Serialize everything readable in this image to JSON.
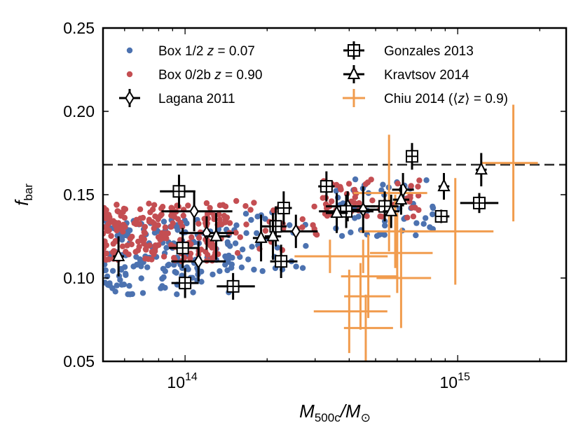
{
  "chart_data": {
    "type": "scatter",
    "xscale": "log",
    "xlim": [
      50000000000000,
      2500000000000000
    ],
    "ylim": [
      0.05,
      0.25
    ],
    "yticks": [
      0.05,
      0.1,
      0.15,
      0.2,
      0.25
    ],
    "ytick_labels": [
      "0.05",
      "0.10",
      "0.15",
      "0.20",
      "0.25"
    ],
    "xticks": [
      100000000000000,
      1000000000000000
    ],
    "xtick_labels": [
      {
        "base": "10",
        "exp": "14"
      },
      {
        "base": "10",
        "exp": "15"
      }
    ],
    "xlabel": {
      "main": "M",
      "sub1": "500c",
      "sep": "/M",
      "sub2": "⊙"
    },
    "ylabel": {
      "main": "f",
      "sub": "bar"
    },
    "reference_line": {
      "y": 0.168,
      "style": "dashed",
      "color": "#333333"
    },
    "legend": {
      "position": "top",
      "entries": [
        {
          "label": "Box 1/2 z = 0.07",
          "marker": "dot",
          "color": "#4c72b0"
        },
        {
          "label": "Box 0/2b z = 0.90",
          "marker": "dot",
          "color": "#c44e52"
        },
        {
          "label": "Lagana 2011",
          "marker": "diamond",
          "color": "#000000"
        },
        {
          "label": "Gonzales 2013",
          "marker": "square",
          "color": "#000000"
        },
        {
          "label": "Kravtsov 2014",
          "marker": "triangle",
          "color": "#000000"
        },
        {
          "label": "Chiu 2014 (⟨z⟩ = 0.9)",
          "marker": "cross",
          "color": "#f19c4e"
        }
      ]
    },
    "series": [
      {
        "name": "Box 1/2 z = 0.07",
        "type": "cloud",
        "color": "#4c72b0",
        "clusters": [
          {
            "xmin": 50000000000000,
            "xmax": 150000000000000,
            "ymin": 0.09,
            "ymax": 0.135,
            "n": 170
          },
          {
            "xmin": 140000000000000,
            "xmax": 300000000000000,
            "ymin": 0.103,
            "ymax": 0.14,
            "n": 40
          },
          {
            "xmin": 350000000000000,
            "xmax": 850000000000000,
            "ymin": 0.125,
            "ymax": 0.16,
            "n": 60
          }
        ]
      },
      {
        "name": "Box 0/2b z = 0.90",
        "type": "cloud",
        "color": "#c44e52",
        "clusters": [
          {
            "xmin": 50000000000000,
            "xmax": 140000000000000,
            "ymin": 0.11,
            "ymax": 0.145,
            "n": 210
          },
          {
            "xmin": 140000000000000,
            "xmax": 330000000000000,
            "ymin": 0.115,
            "ymax": 0.148,
            "n": 35
          },
          {
            "xmin": 320000000000000,
            "xmax": 750000000000000,
            "ymin": 0.135,
            "ymax": 0.16,
            "n": 55
          }
        ]
      },
      {
        "name": "Lagana 2011",
        "marker": "diamond",
        "points": [
          {
            "x": 108000000000000,
            "y": 0.14,
            "xerr": [
              0.12,
              0.14
            ],
            "yerr": 0.012
          },
          {
            "x": 120000000000000,
            "y": 0.127,
            "xerr": [
              0.1,
              0.1
            ],
            "yerr": 0.01
          },
          {
            "x": 112000000000000,
            "y": 0.11,
            "xerr": [
              0.1,
              0.1
            ],
            "yerr": 0.012
          },
          {
            "x": 255000000000000,
            "y": 0.128,
            "xerr": [
              0.09,
              0.08
            ],
            "yerr": 0.01
          },
          {
            "x": 395000000000000,
            "y": 0.143,
            "xerr": [
              0.08,
              0.1
            ],
            "yerr": 0.009
          },
          {
            "x": 450000000000000,
            "y": 0.141,
            "xerr": [
              0.08,
              0.08
            ],
            "yerr": 0.014
          },
          {
            "x": 630000000000000,
            "y": 0.153,
            "xerr": [
              0.04,
              0.04
            ],
            "yerr": 0.01
          }
        ]
      },
      {
        "name": "Gonzales 2013",
        "marker": "square",
        "points": [
          {
            "x": 95000000000000,
            "y": 0.152,
            "xerr": [
              0.07,
              0.06
            ],
            "yerr": 0.01
          },
          {
            "x": 98000000000000,
            "y": 0.118,
            "xerr": [
              0.05,
              0.06
            ],
            "yerr": 0.012
          },
          {
            "x": 100000000000000,
            "y": 0.097,
            "xerr": [
              0.05,
              0.05
            ],
            "yerr": 0.009
          },
          {
            "x": 150000000000000,
            "y": 0.095,
            "xerr": [
              0.06,
              0.08
            ],
            "yerr": 0.008
          },
          {
            "x": 215000000000000,
            "y": 0.131,
            "xerr": [
              0.05,
              0.04
            ],
            "yerr": 0.012
          },
          {
            "x": 225000000000000,
            "y": 0.11,
            "xerr": [
              0.04,
              0.06
            ],
            "yerr": 0.01
          },
          {
            "x": 230000000000000,
            "y": 0.142,
            "xerr": [
              0.03,
              0.03
            ],
            "yerr": 0.01
          },
          {
            "x": 330000000000000,
            "y": 0.155,
            "xerr": [
              0.03,
              0.03
            ],
            "yerr": 0.009
          },
          {
            "x": 390000000000000,
            "y": 0.14,
            "xerr": [
              0.1,
              0.1
            ],
            "yerr": 0.01
          },
          {
            "x": 540000000000000,
            "y": 0.143,
            "xerr": [
              0.05,
              0.05
            ],
            "yerr": 0.009
          },
          {
            "x": 680000000000000,
            "y": 0.173,
            "xerr": [
              0.02,
              0.02
            ],
            "yerr": 0.008
          },
          {
            "x": 870000000000000,
            "y": 0.137,
            "xerr": [
              0.02,
              0.03
            ],
            "yerr": 0.004
          },
          {
            "x": 1200000000000000,
            "y": 0.145,
            "xerr": [
              0.07,
              0.07
            ],
            "yerr": 0.006
          }
        ]
      },
      {
        "name": "Kravtsov 2014",
        "marker": "triangle",
        "points": [
          {
            "x": 57000000000000,
            "y": 0.113,
            "xerr": [
              0.02,
              0.02
            ],
            "yerr": 0.012
          },
          {
            "x": 130000000000000,
            "y": 0.125,
            "xerr": [
              0.04,
              0.05
            ],
            "yerr": 0.014
          },
          {
            "x": 190000000000000,
            "y": 0.124,
            "xerr": [
              0.03,
              0.03
            ],
            "yerr": 0.014
          },
          {
            "x": 210000000000000,
            "y": 0.125,
            "xerr": [
              0.03,
              0.03
            ],
            "yerr": 0.014
          },
          {
            "x": 360000000000000,
            "y": 0.139,
            "xerr": [
              0.04,
              0.04
            ],
            "yerr": 0.012
          },
          {
            "x": 570000000000000,
            "y": 0.14,
            "xerr": [
              0.03,
              0.03
            ],
            "yerr": 0.01
          },
          {
            "x": 620000000000000,
            "y": 0.147,
            "xerr": [
              0.03,
              0.03
            ],
            "yerr": 0.009
          },
          {
            "x": 890000000000000,
            "y": 0.155,
            "xerr": [
              0.02,
              0.02
            ],
            "yerr": 0.008
          },
          {
            "x": 1220000000000000,
            "y": 0.165,
            "xerr": [
              0.02,
              0.02
            ],
            "yerr": 0.01
          }
        ]
      },
      {
        "name": "Chiu 2014 (⟨z⟩ = 0.9)",
        "marker": "cross",
        "points": [
          {
            "x": 340000000000000,
            "y": 0.113,
            "xerr": [
              0.13,
              0.21
            ],
            "yerr": 0.01
          },
          {
            "x": 560000000000000,
            "y": 0.151,
            "xerr": [
              0.13,
              0.14
            ],
            "yerr": 0.035
          },
          {
            "x": 590000000000000,
            "y": 0.128,
            "xerr": [
              0.13,
              0.12
            ],
            "yerr": 0.022
          },
          {
            "x": 600000000000000,
            "y": 0.115,
            "xerr": [
              0.1,
              0.13
            ],
            "yerr": 0.024
          },
          {
            "x": 470000000000000,
            "y": 0.101,
            "xerr": [
              0.1,
              0.11
            ],
            "yerr": 0.025
          },
          {
            "x": 440000000000000,
            "y": 0.089,
            "xerr": [
              0.06,
              0.11
            ],
            "yerr": 0.02
          },
          {
            "x": 400000000000000,
            "y": 0.08,
            "xerr": [
              0.13,
              0.14
            ],
            "yerr": 0.025
          },
          {
            "x": 460000000000000,
            "y": 0.07,
            "xerr": [
              0.08,
              0.1
            ],
            "yerr": 0.02
          },
          {
            "x": 620000000000000,
            "y": 0.1,
            "xerr": [
              0.09,
              0.11
            ],
            "yerr": 0.03
          },
          {
            "x": 980000000000000,
            "y": 0.128,
            "xerr": [
              0.2,
              0.14
            ],
            "yerr": 0.032
          },
          {
            "x": 1600000000000000,
            "y": 0.169,
            "xerr": [
              0.12,
              0.09
            ],
            "yerr": 0.035
          },
          {
            "x": 450000000000000,
            "y": 0.113,
            "xerr": [
              0.08,
              0.09
            ],
            "yerr": 0.01
          }
        ]
      }
    ]
  }
}
